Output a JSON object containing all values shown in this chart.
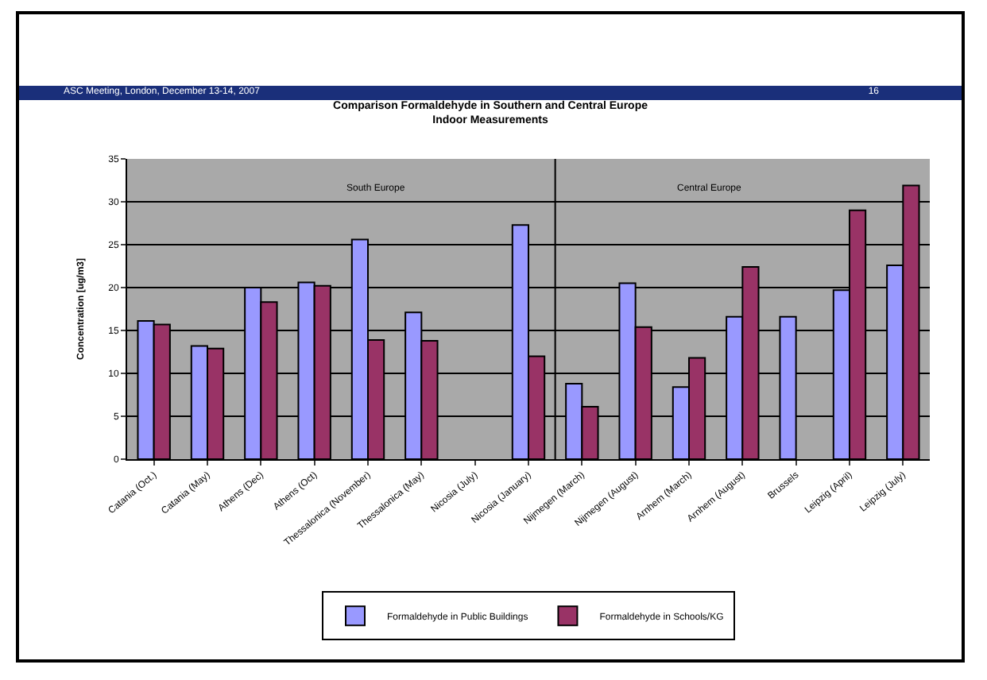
{
  "chart_data": {
    "type": "bar",
    "title": "Comparison Formaldehyde in Southern and Central Europe",
    "subtitle": "Indoor Measurements",
    "ylabel": "Concentration [ug/m3]",
    "categories": [
      "Catania (Oct.)",
      "Catania (May)",
      "Athens (Dec)",
      "Athens (Oct)",
      "Thessalonica (November)",
      "Thessalonica (May)",
      "Nicosia (July)",
      "Nicosia (January)",
      "Nijmegen (March)",
      "Nijmegen (August)",
      "Arnhem (March)",
      "Arnhem (August)",
      "Brussels",
      "Leipzig (April)",
      "Leipzig (July)"
    ],
    "series": [
      {
        "name": "Formaldehyde in Public Buildings",
        "color": "#9999ff",
        "values": [
          16.1,
          13.2,
          20,
          20.6,
          25.6,
          17.1,
          null,
          27.3,
          8.8,
          20.5,
          8.4,
          16.6,
          16.6,
          19.7,
          22.6
        ]
      },
      {
        "name": "Formaldehyde in Schools/KG",
        "color": "#993366",
        "values": [
          15.7,
          12.9,
          18.3,
          20.2,
          13.9,
          13.8,
          null,
          12,
          6.1,
          15.4,
          11.8,
          22.4,
          null,
          29,
          31.9
        ]
      }
    ],
    "ylim": [
      0,
      35
    ],
    "yticks": [
      0,
      5,
      10,
      15,
      20,
      25,
      30,
      35
    ],
    "grid": "y",
    "legend": "bottom",
    "annotations": [
      "ASC Meeting, London, December 13-14,  2007",
      "16",
      "South Europe",
      "Central Europe"
    ]
  }
}
